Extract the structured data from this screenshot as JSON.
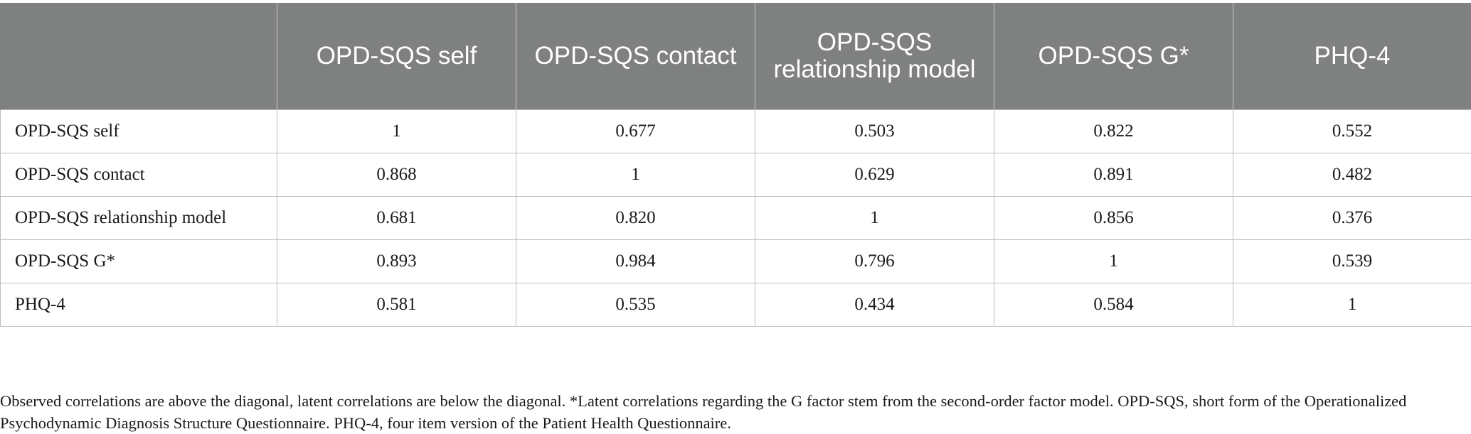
{
  "table": {
    "headers": [
      "",
      "OPD-SQS self",
      "OPD-SQS contact",
      "OPD-SQS relationship model",
      "OPD-SQS G*",
      "PHQ-4"
    ],
    "rows": [
      {
        "label": "OPD-SQS self",
        "values": [
          "1",
          "0.677",
          "0.503",
          "0.822",
          "0.552"
        ]
      },
      {
        "label": "OPD-SQS contact",
        "values": [
          "0.868",
          "1",
          "0.629",
          "0.891",
          "0.482"
        ]
      },
      {
        "label": "OPD-SQS relationship model",
        "values": [
          "0.681",
          "0.820",
          "1",
          "0.856",
          "0.376"
        ]
      },
      {
        "label": "OPD-SQS G*",
        "values": [
          "0.893",
          "0.984",
          "0.796",
          "1",
          "0.539"
        ]
      },
      {
        "label": "PHQ-4",
        "values": [
          "0.581",
          "0.535",
          "0.434",
          "0.584",
          "1"
        ]
      }
    ]
  },
  "footnote": "Observed correlations are above the diagonal, latent correlations are below the diagonal. *Latent correlations regarding the G factor stem from the second-order factor model. OPD-SQS, short form of the Operationalized Psychodynamic Diagnosis Structure Questionnaire. PHQ-4, four item version of the Patient Health Questionnaire."
}
